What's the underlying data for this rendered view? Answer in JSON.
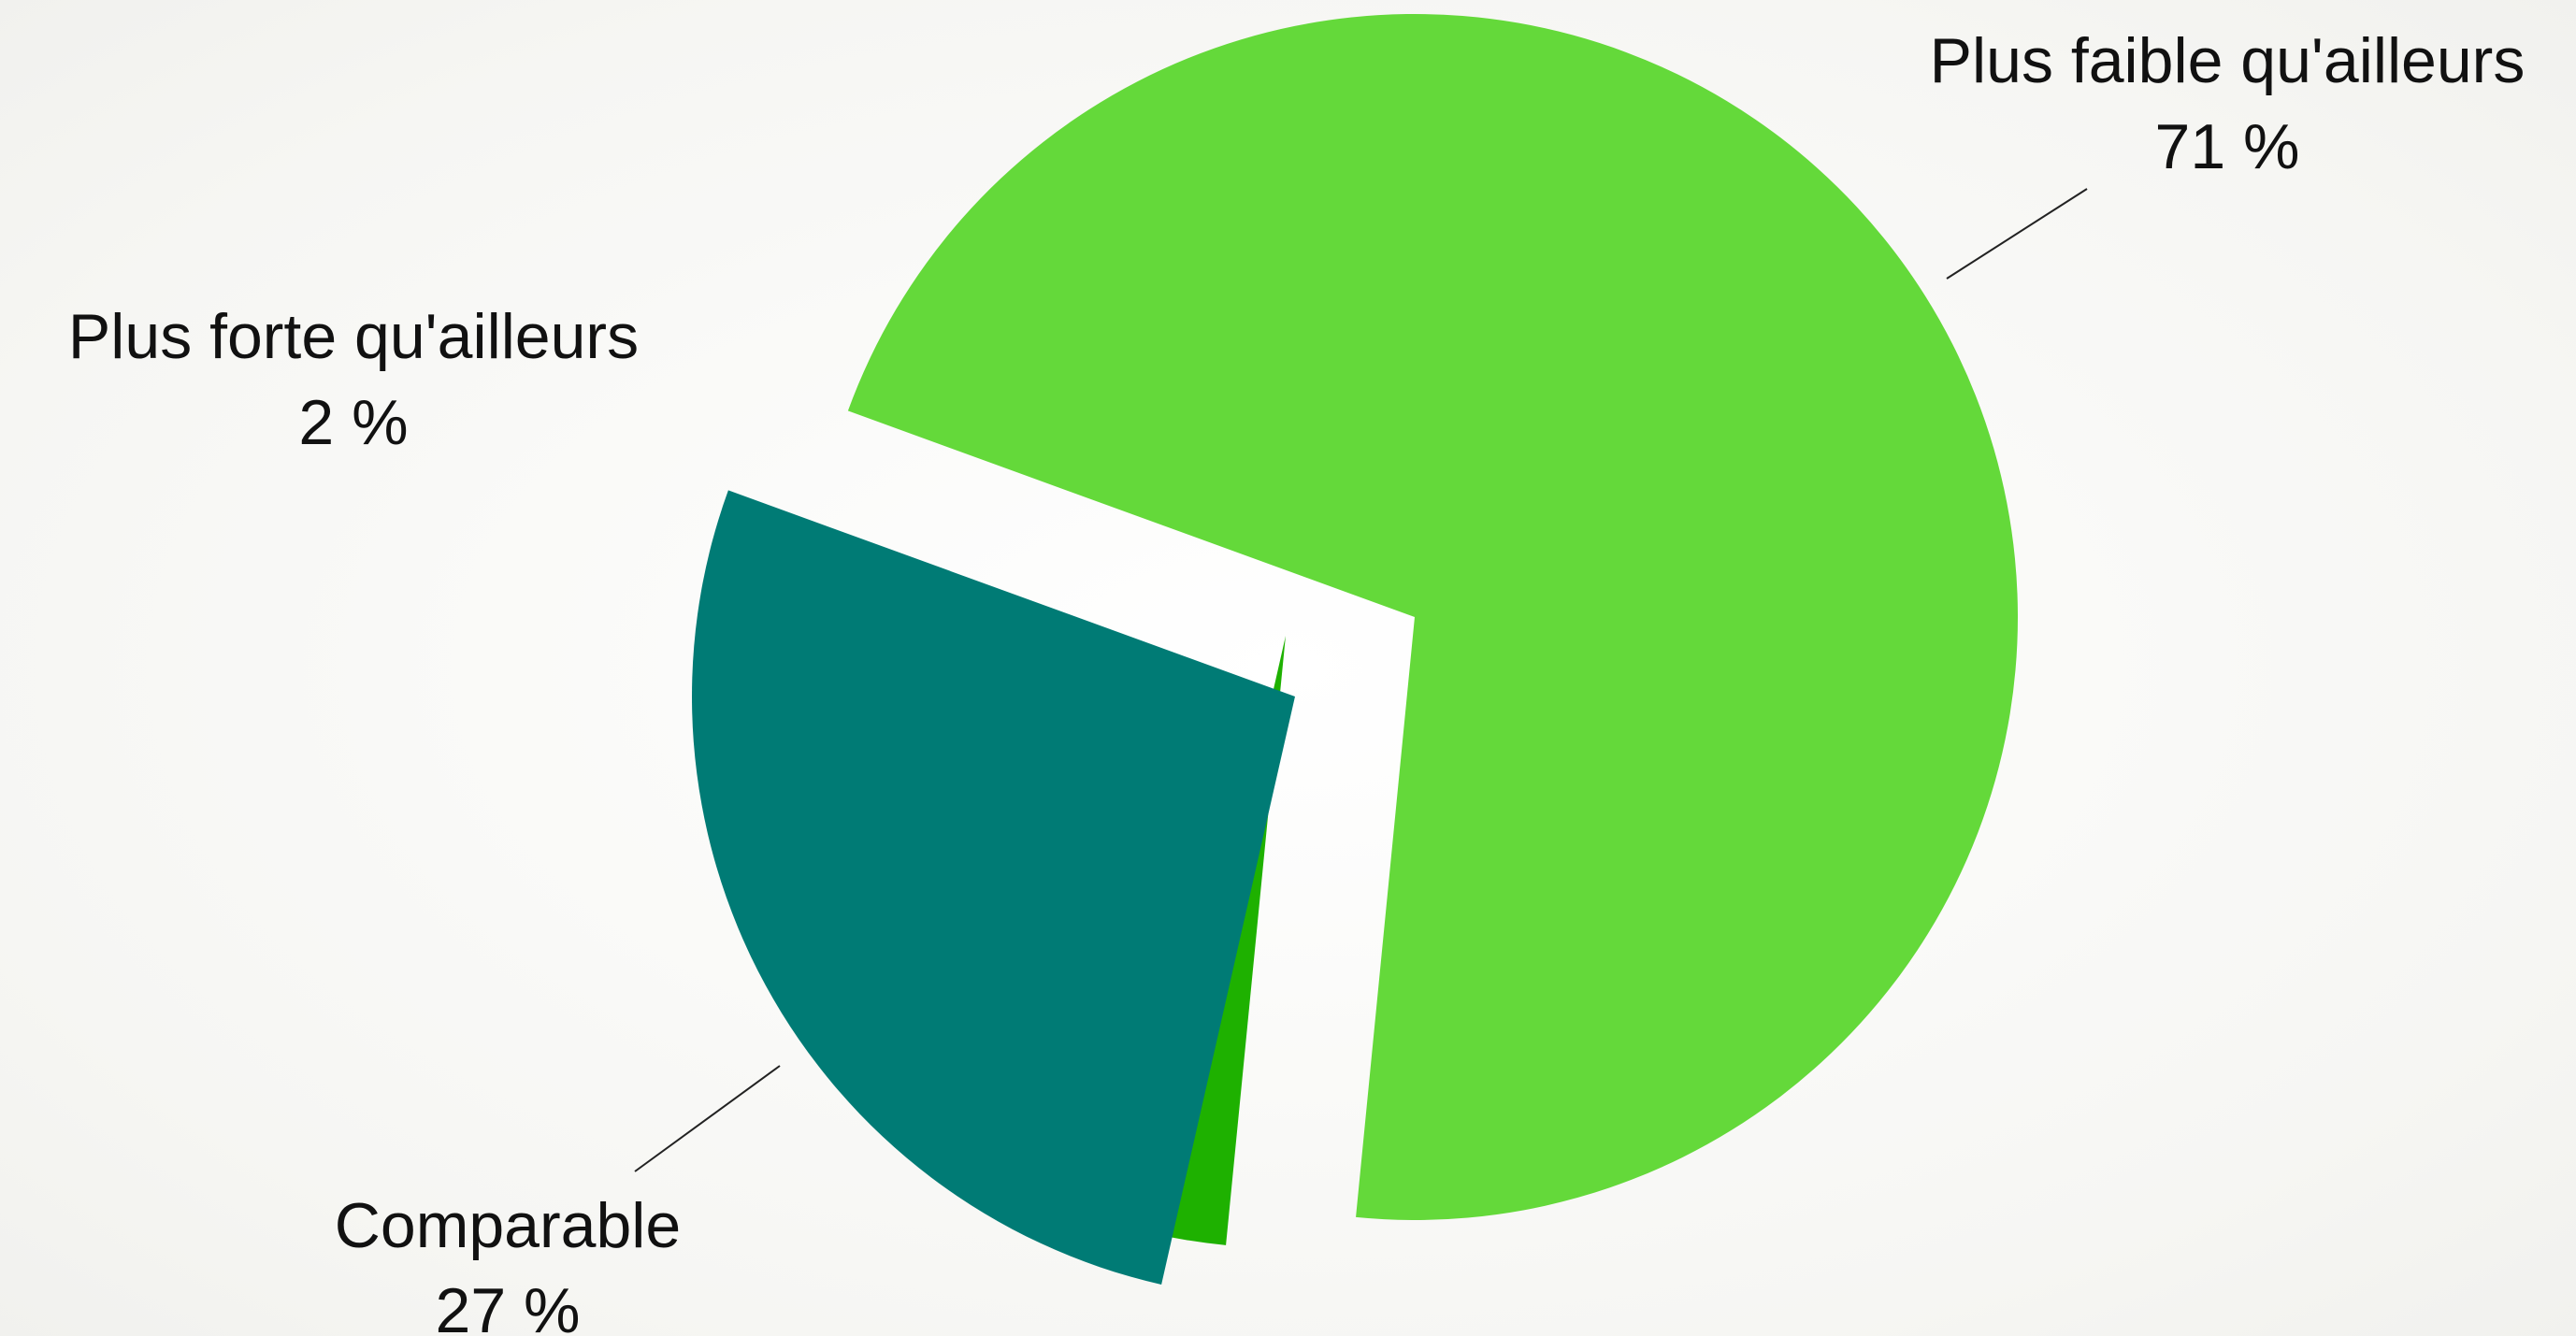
{
  "chart_data": {
    "type": "pie",
    "title": "",
    "legend": "none",
    "exploded": true,
    "slices": [
      {
        "label": "Plus faible qu'ailleurs",
        "value": 71,
        "value_label": "71 %",
        "color": "#64d93a"
      },
      {
        "label": "Plus forte qu'ailleurs",
        "value": 2,
        "value_label": "2 %",
        "color": "#1eb100"
      },
      {
        "label": "Comparable",
        "value": 27,
        "value_label": "27 %",
        "color": "#007b75"
      }
    ]
  }
}
